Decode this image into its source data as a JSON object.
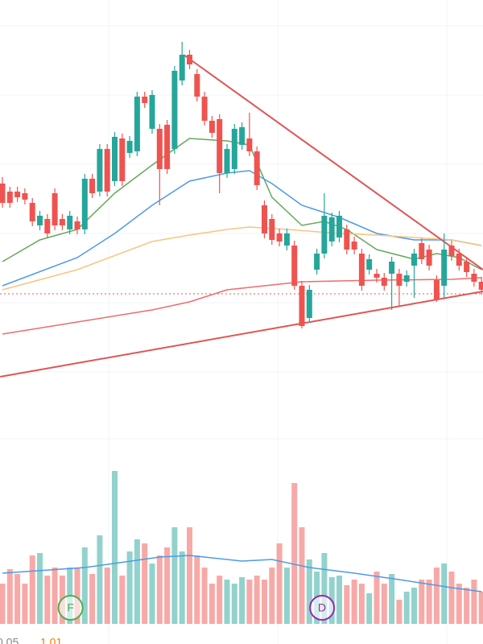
{
  "chart_data": {
    "type": "candlestick",
    "categories": [
      null,
      null,
      null,
      null,
      null,
      null,
      null,
      null,
      null,
      null,
      null,
      null,
      null,
      null,
      null,
      null,
      null,
      null,
      null,
      null,
      null,
      null,
      null,
      null,
      null,
      null,
      null,
      null,
      null,
      null,
      null,
      null,
      null,
      null,
      null,
      null,
      null,
      null,
      null,
      null,
      null,
      null,
      null,
      null,
      null,
      null,
      null,
      null,
      null,
      null,
      null,
      null,
      null,
      null,
      null,
      null,
      null,
      null,
      null,
      null,
      null,
      null,
      null,
      null,
      null
    ],
    "open": [
      252,
      242,
      242,
      240,
      228,
      200,
      208,
      240,
      208,
      195,
      205,
      195,
      258,
      242,
      295,
      255,
      308,
      290,
      292,
      360,
      320,
      320,
      325,
      295,
      380,
      412,
      388,
      360,
      330,
      332,
      265,
      270,
      300,
      308,
      292,
      225,
      208,
      190,
      175,
      175,
      125,
      85,
      145,
      165,
      180,
      185,
      195,
      180,
      165,
      145,
      140,
      135,
      140,
      140,
      130,
      150,
      178,
      170,
      132,
      125,
      175,
      165,
      155,
      140,
      130
    ],
    "high": [
      260,
      248,
      248,
      246,
      234,
      218,
      214,
      246,
      214,
      218,
      211,
      264,
      264,
      301,
      301,
      316,
      314,
      311,
      366,
      366,
      368,
      326,
      331,
      398,
      428,
      418,
      394,
      366,
      336,
      338,
      301,
      326,
      328,
      340,
      298,
      231,
      214,
      196,
      196,
      181,
      131,
      126,
      171,
      240,
      216,
      218,
      201,
      186,
      171,
      164,
      146,
      141,
      161,
      146,
      144,
      171,
      184,
      176,
      138,
      190,
      181,
      171,
      161,
      146,
      136
    ],
    "low": [
      222,
      222,
      229,
      226,
      199,
      194,
      184,
      194,
      194,
      189,
      189,
      189,
      234,
      236,
      236,
      249,
      249,
      284,
      286,
      346,
      314,
      225,
      264,
      289,
      374,
      394,
      354,
      324,
      309,
      240,
      259,
      264,
      294,
      286,
      244,
      184,
      176,
      174,
      169,
      120,
      72,
      79,
      139,
      159,
      174,
      179,
      164,
      164,
      119,
      139,
      129,
      119,
      95,
      100,
      124,
      110,
      152,
      144,
      105,
      110,
      156,
      144,
      136,
      124,
      114
    ],
    "close": [
      228,
      228,
      235,
      232,
      205,
      212,
      190,
      200,
      200,
      212,
      195,
      258,
      240,
      295,
      242,
      310,
      255,
      305,
      360,
      352,
      362,
      270,
      270,
      392,
      412,
      400,
      360,
      330,
      315,
      265,
      295,
      320,
      322,
      292,
      250,
      190,
      182,
      180,
      190,
      125,
      75,
      120,
      165,
      212,
      210,
      212,
      170,
      170,
      125,
      158,
      135,
      125,
      155,
      125,
      138,
      165,
      158,
      150,
      108,
      170,
      162,
      150,
      142,
      130,
      120
    ],
    "ylim": [
      0,
      480
    ],
    "up_color": "#26a69a",
    "down_color": "#ef5350",
    "hline": 115,
    "moving_averages": [
      {
        "color": "#66a85a",
        "x": [
          0,
          5,
          10,
          15,
          20,
          23,
          25,
          30,
          33,
          36,
          40,
          43,
          46,
          50,
          55,
          58,
          61,
          64
        ],
        "values": [
          155,
          182,
          195,
          240,
          275,
          295,
          308,
          305,
          300,
          235,
          200,
          205,
          195,
          170,
          158,
          165,
          160,
          145
        ]
      },
      {
        "color": "#4c9be8",
        "x": [
          0,
          10,
          15,
          20,
          25,
          30,
          33,
          36,
          40,
          45,
          50,
          55,
          60,
          64
        ],
        "values": [
          125,
          160,
          190,
          225,
          255,
          265,
          268,
          252,
          225,
          210,
          190,
          182,
          182,
          175
        ]
      },
      {
        "color": "#f7c57f",
        "x": [
          0,
          10,
          20,
          25,
          30,
          33,
          38,
          45,
          50,
          55,
          60,
          64
        ],
        "values": [
          120,
          145,
          180,
          188,
          195,
          198,
          195,
          190,
          188,
          185,
          182,
          175
        ]
      },
      {
        "color": "#ef6b6b",
        "x": [
          0,
          10,
          20,
          25,
          30,
          35,
          40,
          50,
          60,
          64
        ],
        "values": [
          65,
          80,
          95,
          105,
          120,
          125,
          130,
          132,
          133,
          135
        ]
      }
    ],
    "trend_lines": [
      {
        "color": "#e05555",
        "x": [
          24.2,
          64.2
        ],
        "values": [
          412,
          145
        ]
      },
      {
        "color": "#e05555",
        "x": [
          -0.3,
          64.2
        ],
        "values": [
          12,
          118
        ]
      }
    ],
    "volume": {
      "ylim": [
        0,
        200
      ],
      "values": [
        50,
        68,
        62,
        50,
        85,
        88,
        60,
        70,
        60,
        70,
        70,
        95,
        62,
        110,
        70,
        190,
        60,
        90,
        105,
        100,
        75,
        85,
        95,
        120,
        90,
        120,
        85,
        70,
        50,
        60,
        55,
        50,
        58,
        55,
        60,
        55,
        70,
        100,
        70,
        175,
        120,
        80,
        65,
        88,
        58,
        60,
        48,
        55,
        50,
        38,
        65,
        50,
        62,
        30,
        40,
        45,
        55,
        55,
        70,
        75,
        65,
        50,
        45,
        55,
        40
      ],
      "ma_color": "#4c9be8",
      "ma_x": [
        0,
        11,
        21,
        25,
        32,
        36,
        41,
        47,
        53,
        60,
        64
      ],
      "ma_values": [
        63,
        70,
        83,
        85,
        78,
        80,
        70,
        63,
        55,
        45,
        40
      ]
    },
    "markers": [
      {
        "label": "F",
        "x": 9.1,
        "color": "#4caf50"
      },
      {
        "label": "D",
        "x": 42.7,
        "color": "#9c27b0"
      }
    ],
    "footer_values": [
      {
        "text": "0.05",
        "color": "#888888"
      },
      {
        "text": "1.01",
        "color": "#f57c00"
      }
    ]
  }
}
